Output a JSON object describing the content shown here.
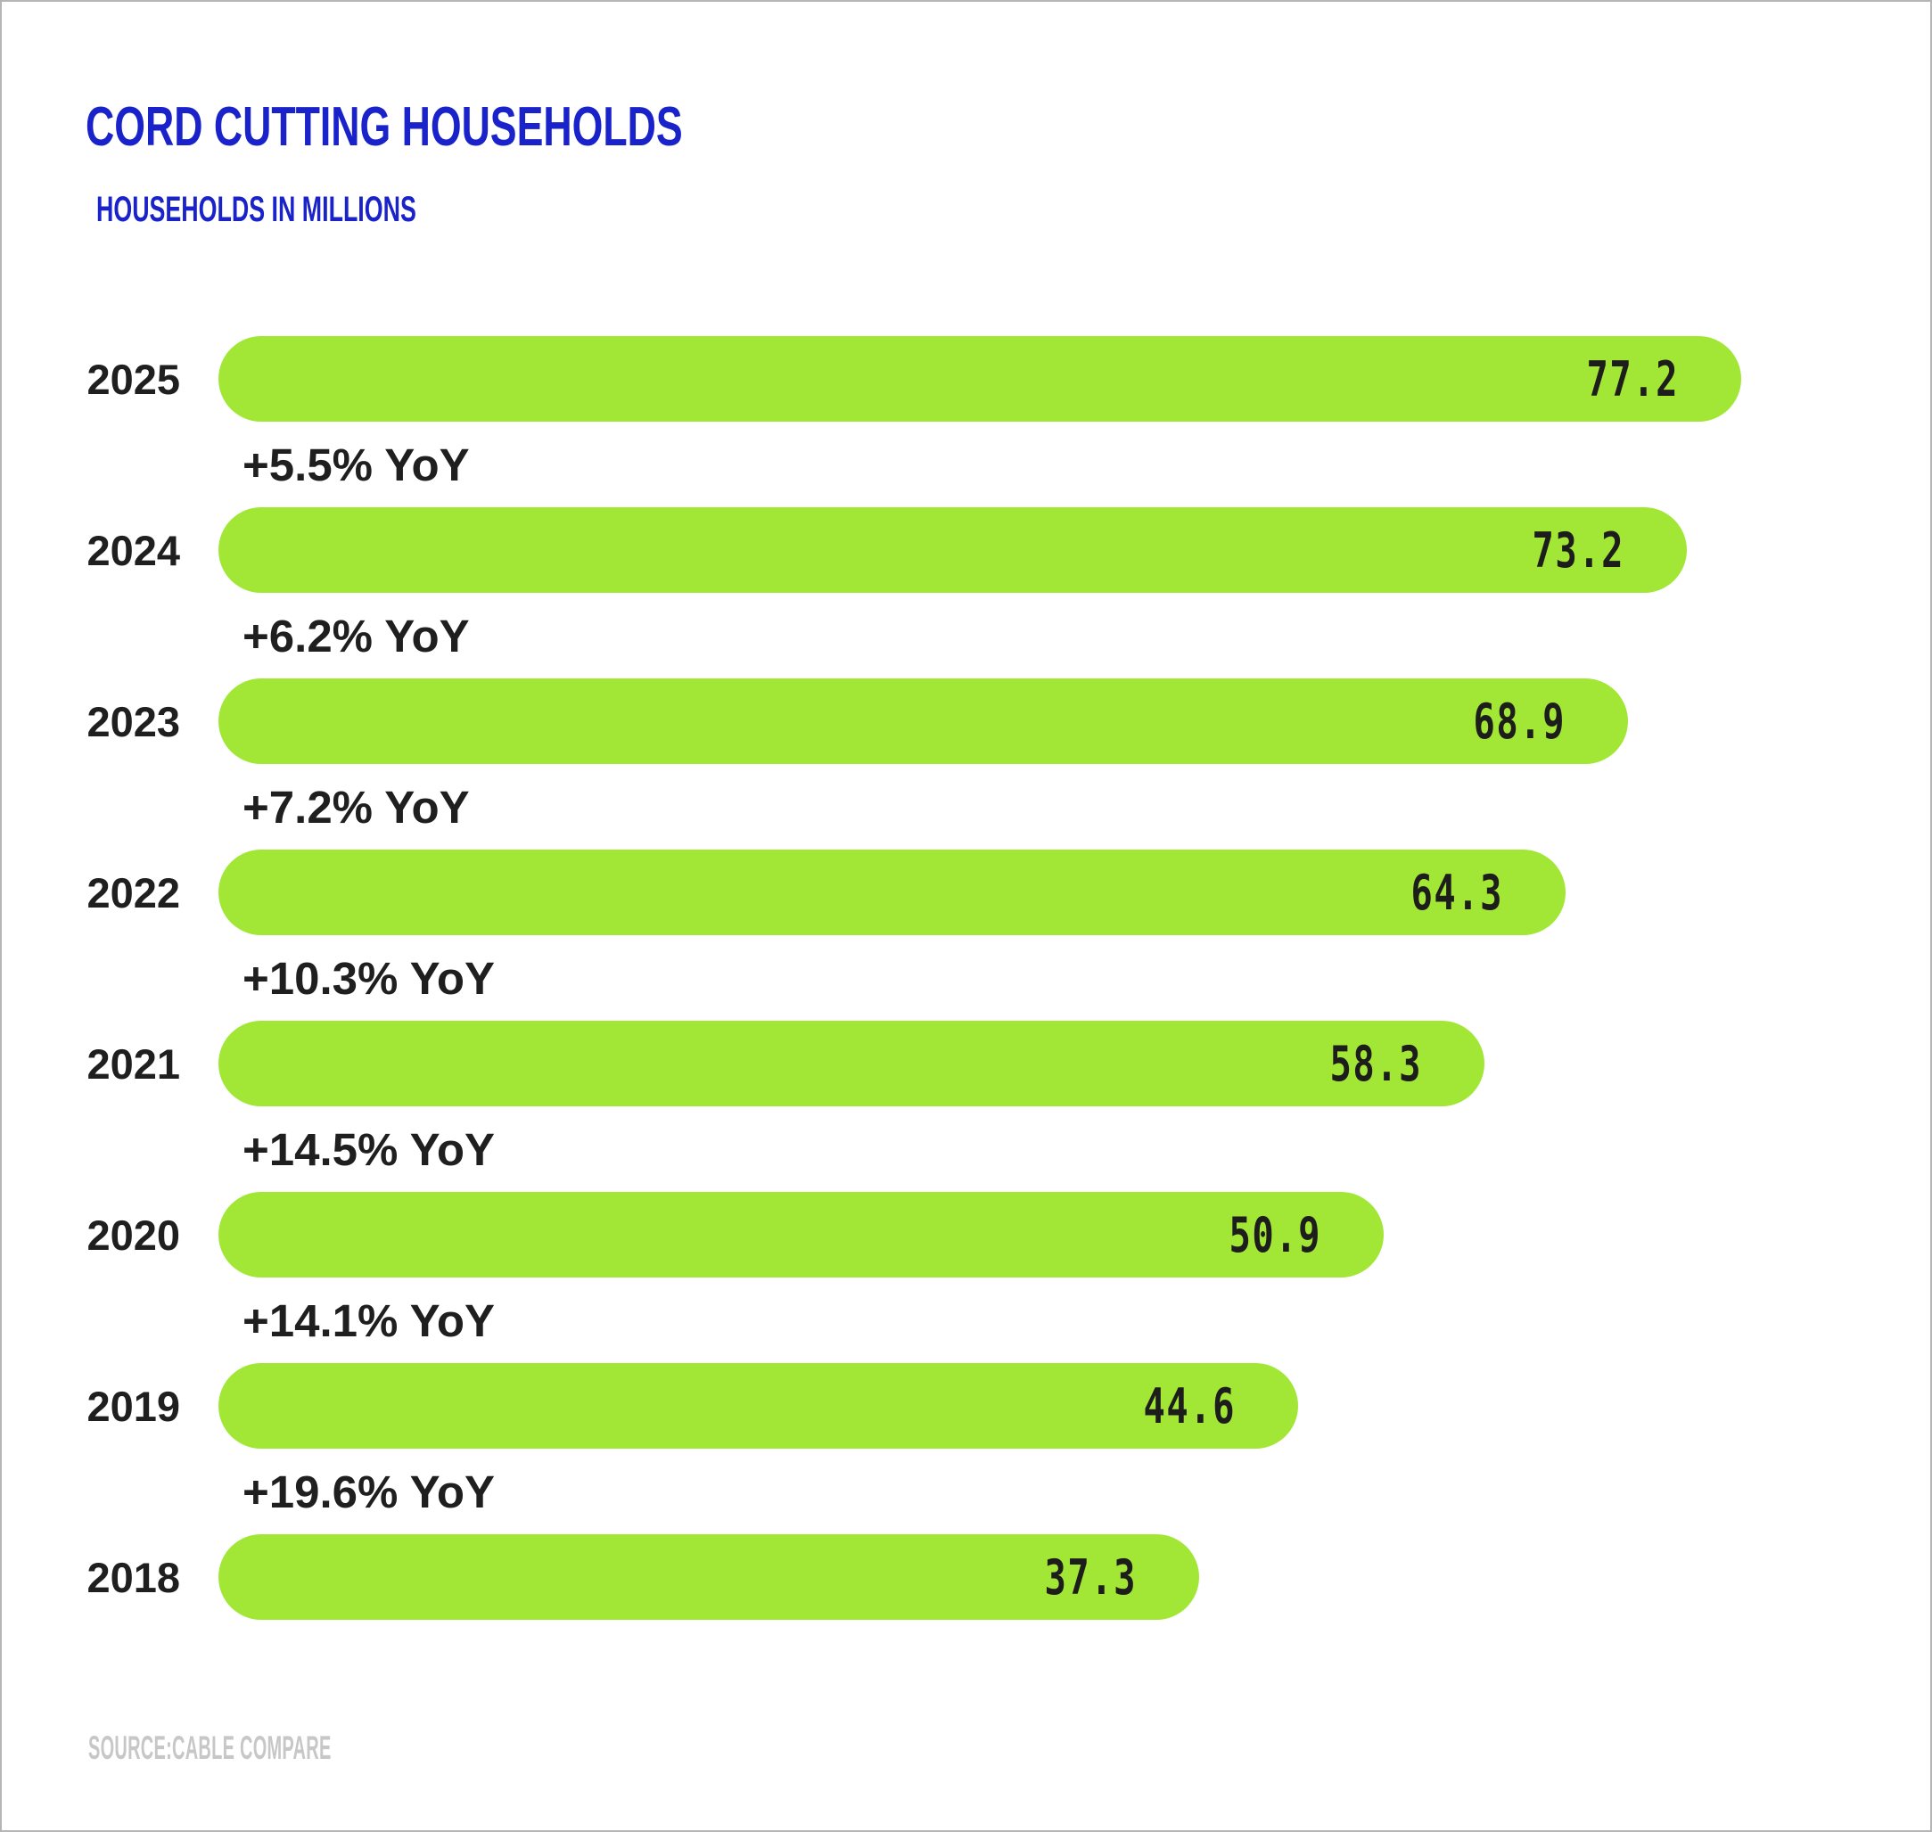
{
  "header": {
    "title": "CORD CUTTING HOUSEHOLDS",
    "subtitle": "HOUSEHOLDS IN MILLIONS"
  },
  "footer": {
    "source": "SOURCE:CABLE COMPARE"
  },
  "colors": {
    "bar": "#a2e636",
    "accent_blue": "#1a23c9",
    "dark_text": "#1f1f1f",
    "value_text": "#1d1d1b",
    "source_gray": "#c7c7c7",
    "frame_border": "#b5b5b5",
    "background": "#ffffff"
  },
  "chart_data": {
    "type": "bar",
    "orientation": "horizontal",
    "title": "CORD CUTTING HOUSEHOLDS",
    "subtitle": "HOUSEHOLDS IN MILLIONS",
    "unit": "households in millions",
    "categories": [
      "2025",
      "2024",
      "2023",
      "2022",
      "2021",
      "2020",
      "2019",
      "2018"
    ],
    "values": [
      77.2,
      73.2,
      68.9,
      64.3,
      58.3,
      50.9,
      44.6,
      37.3
    ],
    "value_labels": [
      "77.2",
      "73.2",
      "68.9",
      "64.3",
      "58.3",
      "50.9",
      "44.6",
      "37.3"
    ],
    "yoy_between": [
      "+5.5% YoY",
      "+6.2% YoY",
      "+7.2% YoY",
      "+10.3% YoY",
      "+14.5% YoY",
      "+14.1% YoY",
      "+19.6% YoY"
    ],
    "bar_color": "#a2e636",
    "value_label_position": "inside-right",
    "grid": false,
    "legend": false,
    "axes_shown": false,
    "source": "SOURCE:CABLE COMPARE"
  }
}
